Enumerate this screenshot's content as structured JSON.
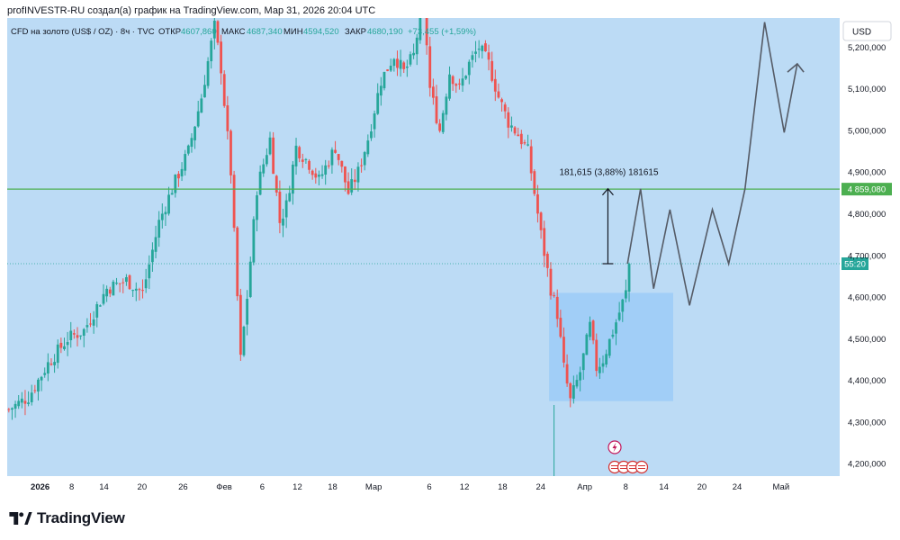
{
  "header": {
    "published_by": "profINVESTR-RU создал(а) график на TradingView.com, Мар 31, 2026 20:04 UTC"
  },
  "legend": {
    "symbol": "CFD на золото (US$ / OZ) · 8ч · TVC",
    "open_label": "ОТКР",
    "open_value": "4607,860",
    "high_label": "МАКС",
    "high_value": "4687,340",
    "low_label": "МИН",
    "low_value": "4594,520",
    "close_label": "ЗАКР",
    "close_value": "4680,190",
    "change": "+73,455 (+1,59%)"
  },
  "currency": "USD",
  "brand": "TradingView",
  "colors": {
    "background": "#bcdbf5",
    "up": "#26a69a",
    "down": "#ef5350",
    "level_line": "#4caf50",
    "zone_fill": "#9ccbf7",
    "projection": "#555b66"
  },
  "chart_data": {
    "type": "candlestick",
    "instrument": "CFD на золото (US$ / OZ)",
    "timeframe": "8ч",
    "y_axis": {
      "ticks": [
        "5,200,000",
        "5,100,000",
        "5,000,000",
        "4,900,000",
        "4,800,000",
        "4,700,000",
        "4,600,000",
        "4,500,000",
        "4,400,000",
        "4,300,000",
        "4,200,000"
      ],
      "range": [
        4170,
        5270
      ]
    },
    "x_axis": {
      "ticks": [
        "2026",
        "8",
        "14",
        "20",
        "26",
        "Фев",
        "6",
        "12",
        "18",
        "Мар",
        "6",
        "12",
        "18",
        "24",
        "Апр",
        "8",
        "14",
        "20",
        "24",
        "Май"
      ]
    },
    "price_path": [
      [
        0,
        4330
      ],
      [
        6,
        4360
      ],
      [
        12,
        4440
      ],
      [
        18,
        4500
      ],
      [
        23,
        4520
      ],
      [
        30,
        4620
      ],
      [
        36,
        4640
      ],
      [
        41,
        4610
      ],
      [
        46,
        4780
      ],
      [
        50,
        4860
      ],
      [
        55,
        4950
      ],
      [
        59,
        5080
      ],
      [
        63,
        5250
      ],
      [
        65,
        5150
      ],
      [
        68,
        4900
      ],
      [
        71,
        4450
      ],
      [
        73,
        4600
      ],
      [
        76,
        4860
      ],
      [
        80,
        4980
      ],
      [
        83,
        4780
      ],
      [
        85,
        4820
      ],
      [
        88,
        4960
      ],
      [
        92,
        4920
      ],
      [
        95,
        4880
      ],
      [
        100,
        4960
      ],
      [
        104,
        4850
      ],
      [
        107,
        4900
      ],
      [
        110,
        4980
      ],
      [
        114,
        5120
      ],
      [
        118,
        5180
      ],
      [
        121,
        5140
      ],
      [
        124,
        5180
      ],
      [
        127,
        5320
      ],
      [
        129,
        5100
      ],
      [
        132,
        5000
      ],
      [
        135,
        5140
      ],
      [
        138,
        5100
      ],
      [
        141,
        5160
      ],
      [
        144,
        5200
      ],
      [
        147,
        5160
      ],
      [
        150,
        5080
      ],
      [
        153,
        5020
      ],
      [
        156,
        4990
      ],
      [
        159,
        4950
      ],
      [
        161,
        4850
      ],
      [
        163,
        4750
      ],
      [
        166,
        4620
      ],
      [
        168,
        4560
      ],
      [
        170,
        4430
      ],
      [
        172,
        4350
      ],
      [
        175,
        4420
      ],
      [
        178,
        4530
      ],
      [
        180,
        4430
      ],
      [
        182,
        4450
      ],
      [
        186,
        4540
      ],
      [
        189,
        4610
      ],
      [
        190,
        4680
      ]
    ],
    "annotations": {
      "level": {
        "value": 4859.08,
        "label": "4 859,080"
      },
      "current_price_label": "55:20",
      "current_price": 4680,
      "measure": {
        "text": "181,615 (3,88%) 181615",
        "from": 4680,
        "to": 4860
      },
      "zone": {
        "x_start": 166,
        "x_end": 204,
        "y_low": 4350,
        "y_high": 4610
      },
      "projection": [
        [
          190,
          4680
        ],
        [
          194,
          4860
        ],
        [
          198,
          4620
        ],
        [
          203,
          4810
        ],
        [
          209,
          4580
        ],
        [
          216,
          4810
        ],
        [
          221,
          4680
        ],
        [
          226,
          4860
        ],
        [
          232,
          5260
        ],
        [
          238,
          4995
        ],
        [
          242,
          5160
        ]
      ],
      "projection_arrow": [
        [
          239,
          5140
        ],
        [
          242,
          5160
        ],
        [
          244,
          5140
        ]
      ]
    }
  }
}
